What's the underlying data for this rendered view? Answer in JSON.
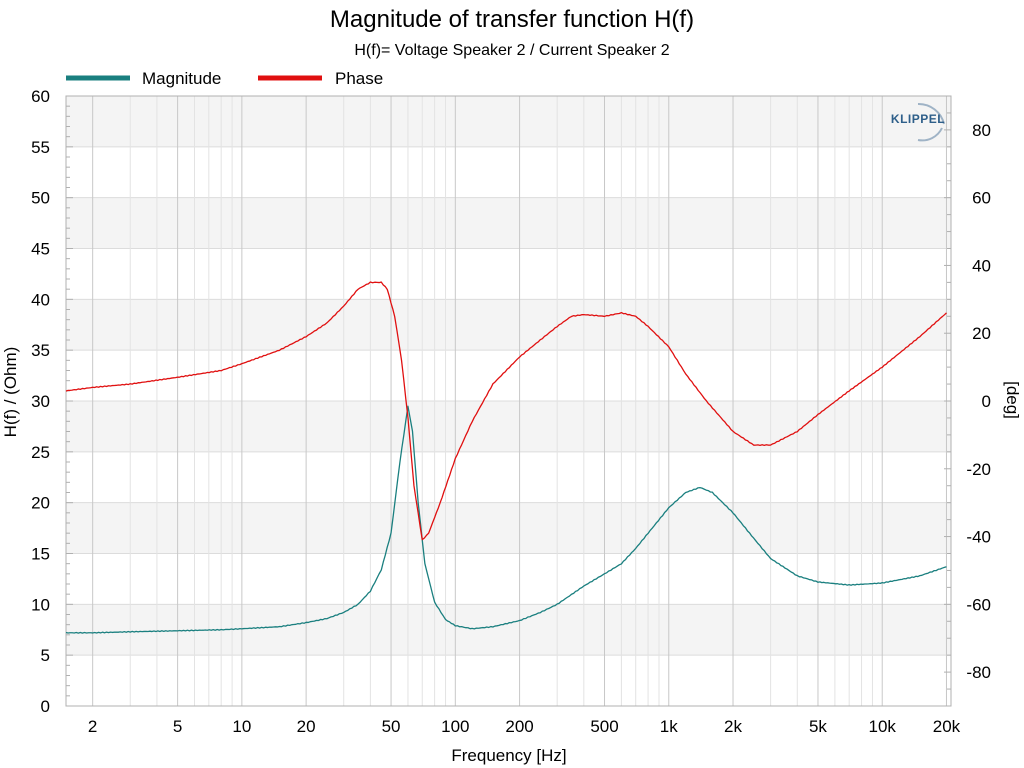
{
  "chart_data": {
    "type": "line",
    "title": "Magnitude of transfer function H(f)",
    "subtitle": "H(f)= Voltage Speaker 2 / Current Speaker 2",
    "xlabel": "Frequency [Hz]",
    "ylabel_left": "H(f) / (Ohm)",
    "ylabel_right": "[deg]",
    "x_scale": "log",
    "xlim": [
      1.5,
      21000
    ],
    "ylim_left": [
      0,
      60
    ],
    "ylim_right": [
      -90,
      90
    ],
    "grid": true,
    "legend_position": "top-left",
    "logo_text": "KLIPPEL",
    "x_ticks": [
      {
        "value": 2,
        "label": "2"
      },
      {
        "value": 5,
        "label": "5"
      },
      {
        "value": 10,
        "label": "10"
      },
      {
        "value": 20,
        "label": "20"
      },
      {
        "value": 50,
        "label": "50"
      },
      {
        "value": 100,
        "label": "100"
      },
      {
        "value": 200,
        "label": "200"
      },
      {
        "value": 500,
        "label": "500"
      },
      {
        "value": 1000,
        "label": "1k"
      },
      {
        "value": 2000,
        "label": "2k"
      },
      {
        "value": 5000,
        "label": "5k"
      },
      {
        "value": 10000,
        "label": "10k"
      },
      {
        "value": 20000,
        "label": "20k"
      }
    ],
    "y_ticks_left": [
      0,
      5,
      10,
      15,
      20,
      25,
      30,
      35,
      40,
      45,
      50,
      55,
      60
    ],
    "y_ticks_right": [
      -80,
      -60,
      -40,
      -20,
      0,
      20,
      40,
      60,
      80
    ],
    "series": [
      {
        "name": "Magnitude",
        "axis": "left",
        "color": "#1a7f7f",
        "points": [
          [
            1.5,
            7.2
          ],
          [
            2,
            7.2
          ],
          [
            3,
            7.3
          ],
          [
            5,
            7.4
          ],
          [
            8,
            7.5
          ],
          [
            10,
            7.6
          ],
          [
            15,
            7.8
          ],
          [
            20,
            8.2
          ],
          [
            25,
            8.6
          ],
          [
            30,
            9.2
          ],
          [
            35,
            10.0
          ],
          [
            40,
            11.3
          ],
          [
            45,
            13.4
          ],
          [
            50,
            17.0
          ],
          [
            55,
            24.0
          ],
          [
            60,
            29.5
          ],
          [
            63,
            27.0
          ],
          [
            67,
            20.0
          ],
          [
            72,
            14.0
          ],
          [
            80,
            10.2
          ],
          [
            90,
            8.5
          ],
          [
            100,
            7.9
          ],
          [
            120,
            7.6
          ],
          [
            150,
            7.8
          ],
          [
            200,
            8.4
          ],
          [
            250,
            9.2
          ],
          [
            300,
            10.0
          ],
          [
            400,
            11.8
          ],
          [
            500,
            13.0
          ],
          [
            600,
            14.0
          ],
          [
            700,
            15.5
          ],
          [
            800,
            17.0
          ],
          [
            1000,
            19.5
          ],
          [
            1200,
            21.0
          ],
          [
            1400,
            21.5
          ],
          [
            1600,
            21.0
          ],
          [
            2000,
            19.0
          ],
          [
            2500,
            16.5
          ],
          [
            3000,
            14.5
          ],
          [
            4000,
            12.8
          ],
          [
            5000,
            12.2
          ],
          [
            7000,
            11.9
          ],
          [
            10000,
            12.1
          ],
          [
            15000,
            12.8
          ],
          [
            20000,
            13.7
          ]
        ]
      },
      {
        "name": "Phase",
        "axis": "right",
        "color": "#e01010",
        "points": [
          [
            1.5,
            3
          ],
          [
            2,
            4
          ],
          [
            3,
            5
          ],
          [
            5,
            7
          ],
          [
            8,
            9
          ],
          [
            10,
            11
          ],
          [
            15,
            15
          ],
          [
            20,
            19
          ],
          [
            25,
            23
          ],
          [
            30,
            28
          ],
          [
            35,
            33
          ],
          [
            40,
            35
          ],
          [
            45,
            35
          ],
          [
            48,
            33
          ],
          [
            52,
            25
          ],
          [
            56,
            12
          ],
          [
            60,
            -5
          ],
          [
            64,
            -25
          ],
          [
            70,
            -41
          ],
          [
            75,
            -39
          ],
          [
            85,
            -30
          ],
          [
            100,
            -17
          ],
          [
            120,
            -6
          ],
          [
            150,
            5
          ],
          [
            200,
            13
          ],
          [
            250,
            18
          ],
          [
            300,
            22
          ],
          [
            350,
            25
          ],
          [
            400,
            25.5
          ],
          [
            500,
            25
          ],
          [
            600,
            26
          ],
          [
            700,
            25
          ],
          [
            800,
            22
          ],
          [
            1000,
            16
          ],
          [
            1200,
            8
          ],
          [
            1500,
            0
          ],
          [
            2000,
            -9
          ],
          [
            2500,
            -13
          ],
          [
            3000,
            -13
          ],
          [
            4000,
            -9
          ],
          [
            5000,
            -4
          ],
          [
            7000,
            3
          ],
          [
            10000,
            10
          ],
          [
            15000,
            19
          ],
          [
            20000,
            26
          ]
        ]
      }
    ]
  }
}
